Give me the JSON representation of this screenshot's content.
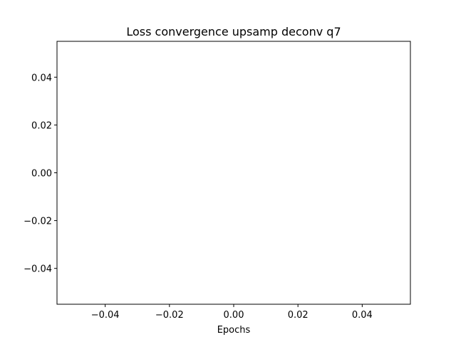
{
  "chart_data": {
    "type": "line",
    "title": "Loss convergence upsamp deconv q7",
    "xlabel": "Epochs",
    "ylabel": "",
    "xlim": [
      -0.055,
      0.055
    ],
    "ylim": [
      -0.055,
      0.055
    ],
    "x_ticks": [
      -0.04,
      -0.02,
      0.0,
      0.02,
      0.04
    ],
    "x_tick_labels": [
      "−0.04",
      "−0.02",
      "0.00",
      "0.02",
      "0.04"
    ],
    "y_ticks": [
      -0.04,
      -0.02,
      0.0,
      0.02,
      0.04
    ],
    "y_tick_labels": [
      "−0.04",
      "−0.02",
      "0.00",
      "0.02",
      "0.04"
    ],
    "grid": false,
    "series": [
      {
        "x": [],
        "y": []
      }
    ]
  }
}
